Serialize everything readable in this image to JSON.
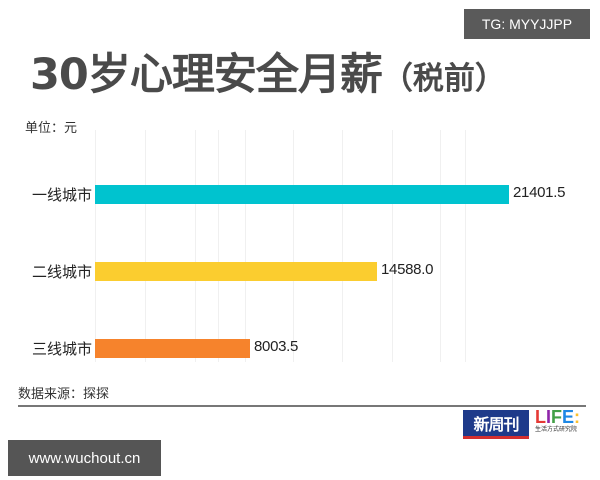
{
  "watermark_top": "TG: MYYJJPP",
  "watermark_bottom": "www.wuchout.cn",
  "title": {
    "main": "30岁心理安全月薪",
    "sub": "（税前）"
  },
  "unit_label": "单位：元",
  "source_label": "数据来源：探探",
  "logos": {
    "xinzhoukan": "新周刊",
    "life_letters": [
      "L",
      "I",
      "F",
      "E",
      ":"
    ],
    "life_caption": "生活方式研究院"
  },
  "colors": {
    "tier1": "#00c3cf",
    "tier2": "#fbcd2f",
    "tier3": "#f6832c"
  },
  "chart_data": {
    "type": "bar",
    "orientation": "horizontal",
    "title": "30岁心理安全月薪（税前）",
    "unit": "元",
    "xlabel": "",
    "ylabel": "",
    "categories": [
      "一线城市",
      "二线城市",
      "三线城市"
    ],
    "values": [
      21401.5,
      14588.0,
      8003.5
    ],
    "value_labels": [
      "21401.5",
      "14588.0",
      "8003.5"
    ],
    "bar_colors": [
      "#00c3cf",
      "#fbcd2f",
      "#f6832c"
    ],
    "xlim": [
      0,
      21700
    ],
    "grid": true,
    "legend": "none",
    "source": "探探"
  }
}
